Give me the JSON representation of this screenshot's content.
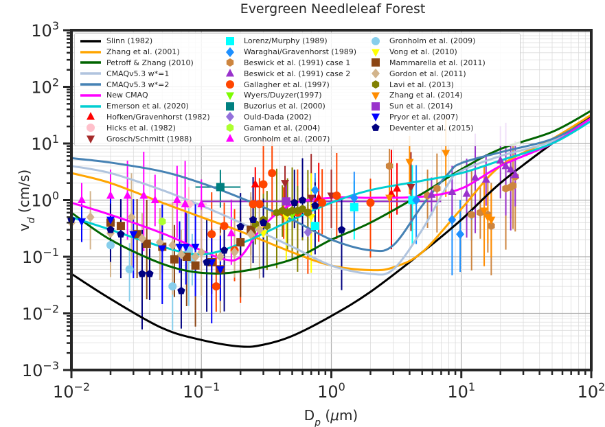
{
  "chart_data": {
    "type": "line",
    "title": "Evergreen Needleleaf Forest",
    "xlabel": "D_p (μm)",
    "ylabel": "v_d (cm/s)",
    "xscale": "log",
    "yscale": "log",
    "xlim": [
      0.01,
      100
    ],
    "ylim": [
      0.001,
      1000
    ],
    "xticks": [
      {
        "value": 0.01,
        "base": "10",
        "exp": "−2"
      },
      {
        "value": 0.1,
        "base": "10",
        "exp": "−1"
      },
      {
        "value": 1,
        "base": "10",
        "exp": "0"
      },
      {
        "value": 10,
        "base": "10",
        "exp": "1"
      },
      {
        "value": 100,
        "base": "10",
        "exp": "2"
      }
    ],
    "yticks": [
      {
        "value": 0.001,
        "base": "10",
        "exp": "−3"
      },
      {
        "value": 0.01,
        "base": "10",
        "exp": "−2"
      },
      {
        "value": 0.1,
        "base": "10",
        "exp": "−1"
      },
      {
        "value": 1,
        "base": "10",
        "exp": "0"
      },
      {
        "value": 10,
        "base": "10",
        "exp": "1"
      },
      {
        "value": 100,
        "base": "10",
        "exp": "2"
      },
      {
        "value": 1000,
        "base": "10",
        "exp": "3"
      }
    ],
    "grid": true,
    "legend_position": "top",
    "lines": [
      {
        "name": "Slinn (1982)",
        "color": "#000000",
        "x": [
          0.01,
          0.02,
          0.05,
          0.1,
          0.2,
          0.3,
          0.5,
          1,
          2,
          5,
          10,
          20,
          50,
          100
        ],
        "y": [
          0.05,
          0.018,
          0.0055,
          0.0034,
          0.0026,
          0.0028,
          0.004,
          0.009,
          0.024,
          0.12,
          0.45,
          2,
          10,
          30
        ]
      },
      {
        "name": "Zhang et al. (2001)",
        "color": "#ffa500",
        "x": [
          0.01,
          0.02,
          0.05,
          0.1,
          0.2,
          0.5,
          1,
          2,
          3,
          5,
          10,
          20,
          50,
          100
        ],
        "y": [
          3,
          2,
          0.9,
          0.5,
          0.28,
          0.12,
          0.07,
          0.058,
          0.065,
          0.12,
          0.7,
          4,
          12,
          32
        ]
      },
      {
        "name": "Petroff & Zhang (2010)",
        "color": "#006400",
        "x": [
          0.01,
          0.02,
          0.05,
          0.1,
          0.2,
          0.5,
          1,
          2,
          5,
          10,
          20,
          50,
          100
        ],
        "y": [
          0.6,
          0.2,
          0.075,
          0.052,
          0.055,
          0.09,
          0.2,
          0.4,
          1.3,
          3.5,
          8,
          16,
          38
        ]
      },
      {
        "name": "CMAQv5.3 w*=1",
        "color": "#b0c4de",
        "x": [
          0.01,
          0.02,
          0.05,
          0.1,
          0.2,
          0.5,
          1,
          2,
          3,
          5,
          8,
          10,
          20,
          50,
          100
        ],
        "y": [
          4,
          3,
          1.5,
          0.8,
          0.4,
          0.15,
          0.07,
          0.05,
          0.06,
          0.3,
          2,
          3.3,
          6,
          11,
          28
        ]
      },
      {
        "name": "CMAQv5.3 w*=2",
        "color": "#4682b4",
        "x": [
          0.01,
          0.02,
          0.05,
          0.1,
          0.2,
          0.5,
          1,
          2,
          3,
          5,
          8,
          10,
          20,
          50,
          100
        ],
        "y": [
          5.5,
          4.6,
          3.2,
          2,
          1.1,
          0.45,
          0.2,
          0.13,
          0.16,
          0.8,
          3,
          4.5,
          7,
          12,
          28
        ]
      },
      {
        "name": "New CMAQ",
        "color": "#ff00ff",
        "x": [
          0.01,
          0.02,
          0.05,
          0.1,
          0.15,
          0.2,
          0.3,
          0.5,
          1,
          2,
          5,
          10,
          20,
          50,
          100
        ],
        "y": [
          0.9,
          0.55,
          0.26,
          0.13,
          0.09,
          0.1,
          0.35,
          0.85,
          1.1,
          1.1,
          1.15,
          1.6,
          4,
          10,
          28
        ]
      },
      {
        "name": "Emerson et al. (2020)",
        "color": "#00ced1",
        "x": [
          0.01,
          0.02,
          0.05,
          0.1,
          0.2,
          0.5,
          1,
          2,
          5,
          10,
          20,
          50,
          100
        ],
        "y": [
          0.5,
          0.3,
          0.15,
          0.11,
          0.17,
          0.45,
          0.9,
          1.5,
          2.2,
          3,
          5,
          10,
          25
        ]
      }
    ],
    "scatter": [
      {
        "name": "Hofken/Gravenhorst (1982)",
        "color": "#ff0000",
        "marker": "triangle-up",
        "points": [
          [
            0.26,
            1.9
          ],
          [
            0.75,
            0.85
          ],
          [
            0.8,
            1.1
          ],
          [
            2.9,
            1.3
          ],
          [
            3.2,
            1.6
          ]
        ]
      },
      {
        "name": "Hicks et al. (1982)",
        "color": "#ffc0cb",
        "marker": "circle",
        "points": [
          [
            0.08,
            0.85
          ]
        ],
        "xerr": [
          [
            0.05,
            0.11
          ]
        ]
      },
      {
        "name": "Grosch/Schmitt (1988)",
        "color": "#a52a2a",
        "marker": "triangle-down",
        "points": [
          [
            0.44,
            2.0
          ],
          [
            1.0,
            1.2
          ],
          [
            4.1,
            1.7
          ],
          [
            0.7,
            1.1
          ]
        ]
      },
      {
        "name": "Lorenz/Murphy (1989)",
        "color": "#00ffff",
        "marker": "square",
        "points": [
          [
            0.75,
            0.35
          ],
          [
            1.5,
            0.75
          ],
          [
            4.2,
            1.0
          ]
        ]
      },
      {
        "name": "Waraghai/Gravenhorst (1989)",
        "color": "#1e90ff",
        "marker": "diamond",
        "points": [
          [
            0.75,
            1.5
          ],
          [
            1.5,
            1.1
          ],
          [
            4.5,
            1.0
          ],
          [
            8.5,
            0.45
          ],
          [
            12,
            0.55
          ],
          [
            9.8,
            0.25
          ]
        ]
      },
      {
        "name": "Beswick et al. (1991) case 1",
        "color": "#cd853f",
        "marker": "hexagon",
        "points": [
          [
            2.8,
            4.0
          ],
          [
            5.5,
            1.2
          ],
          [
            6.5,
            1.6
          ],
          [
            12,
            0.55
          ],
          [
            14,
            0.6
          ],
          [
            16,
            0.55
          ],
          [
            17,
            0.35
          ],
          [
            22,
            1.6
          ],
          [
            24,
            1.7
          ],
          [
            25,
            1.8
          ],
          [
            26,
            2.6
          ]
        ]
      },
      {
        "name": "Beswick et al. (1991) case 2",
        "color": "#9932cc",
        "marker": "triangle-up",
        "points": [
          [
            5.9,
            1.25
          ],
          [
            8.5,
            1.4
          ],
          [
            11,
            1.3
          ],
          [
            12.8,
            2.5
          ],
          [
            15.5,
            2.3
          ],
          [
            20,
            5
          ],
          [
            22,
            4
          ],
          [
            24,
            3.5
          ],
          [
            26,
            2.8
          ]
        ]
      },
      {
        "name": "Gallagher et al. (1997)",
        "color": "#ff4500",
        "marker": "circle",
        "points": [
          [
            0.25,
            0.85
          ],
          [
            0.28,
            0.85
          ],
          [
            0.35,
            3.0
          ],
          [
            0.3,
            1.9
          ],
          [
            0.43,
            0.6
          ],
          [
            0.5,
            0.6
          ],
          [
            0.55,
            0.6
          ],
          [
            0.66,
            0.6
          ],
          [
            0.85,
            0.9
          ],
          [
            1.1,
            1.2
          ],
          [
            2,
            0.9
          ],
          [
            0.13,
            0.03
          ],
          [
            0.12,
            0.25
          ],
          [
            0.15,
            0.35
          ],
          [
            0.2,
            0.18
          ],
          [
            0.18,
            0.13
          ]
        ]
      },
      {
        "name": "Wyers/Duyzer(1997)",
        "color": "#7cfc00",
        "marker": "triangle-down",
        "points": [
          [
            0.5,
            0.55
          ]
        ]
      },
      {
        "name": "Buzorius et al. (2000)",
        "color": "#008080",
        "marker": "square",
        "points": [
          [
            0.14,
            1.7
          ]
        ],
        "xerr": [
          [
            0.09,
            0.2
          ]
        ]
      },
      {
        "name": "Ould-Dada (2002)",
        "color": "#9370db",
        "marker": "diamond",
        "points": [
          [
            0.66,
            0.27
          ]
        ]
      },
      {
        "name": "Gaman et al. (2004)",
        "color": "#adff2f",
        "marker": "hexagon",
        "points": [
          [
            0.05,
            0.42
          ]
        ]
      },
      {
        "name": "Gronholm et al. (2007)",
        "color": "#ff00ff",
        "marker": "triangle-up",
        "points": [
          [
            0.012,
            1.0
          ],
          [
            0.02,
            1.2
          ],
          [
            0.027,
            1.2
          ],
          [
            0.036,
            1.2
          ],
          [
            0.044,
            1.0
          ],
          [
            0.065,
            1.0
          ],
          [
            0.075,
            0.85
          ],
          [
            0.1,
            0.85
          ],
          [
            0.17,
            0.26
          ]
        ]
      },
      {
        "name": "Gronholm et al. (2009)",
        "color": "#87ceeb",
        "marker": "circle",
        "points": [
          [
            0.02,
            0.16
          ],
          [
            0.028,
            0.06
          ],
          [
            0.06,
            0.03
          ],
          [
            0.08,
            0.13
          ],
          [
            0.085,
            0.09
          ]
        ]
      },
      {
        "name": "Vong et al. (2010)",
        "color": "#ffff00",
        "marker": "triangle-down",
        "points": [
          [
            0.28,
            0.3
          ],
          [
            0.3,
            0.26
          ],
          [
            0.45,
            0.5
          ],
          [
            0.7,
            0.5
          ]
        ]
      },
      {
        "name": "Mammarella et al. (2011)",
        "color": "#8b4513",
        "marker": "square",
        "points": [
          [
            0.02,
            0.4
          ],
          [
            0.024,
            0.35
          ],
          [
            0.032,
            0.25
          ],
          [
            0.038,
            0.17
          ],
          [
            0.05,
            0.15
          ],
          [
            0.062,
            0.09
          ],
          [
            0.077,
            0.1
          ],
          [
            0.09,
            0.07
          ],
          [
            0.12,
            0.08
          ],
          [
            0.14,
            0.06
          ],
          [
            0.2,
            0.18
          ],
          [
            0.24,
            0.3
          ]
        ]
      },
      {
        "name": "Gordon et al. (2011)",
        "color": "#d2b48c",
        "marker": "diamond",
        "points": [
          [
            0.01,
            0.4
          ],
          [
            0.014,
            0.5
          ],
          [
            0.02,
            0.26
          ],
          [
            0.029,
            0.5
          ],
          [
            0.035,
            0.21
          ],
          [
            0.048,
            0.18
          ],
          [
            0.06,
            0.16
          ],
          [
            0.07,
            0.11
          ],
          [
            0.09,
            0.1
          ],
          [
            0.1,
            0.12
          ],
          [
            0.14,
            0.1
          ],
          [
            0.18,
            0.12
          ],
          [
            0.24,
            0.25
          ],
          [
            0.28,
            0.3
          ]
        ]
      },
      {
        "name": "Lavi et al. (2013)",
        "color": "#808000",
        "marker": "hexagon",
        "points": [
          [
            0.26,
            0.38
          ],
          [
            0.3,
            0.45
          ],
          [
            0.32,
            0.35
          ],
          [
            0.38,
            0.6
          ],
          [
            0.42,
            0.65
          ],
          [
            0.46,
            0.6
          ],
          [
            0.5,
            0.65
          ],
          [
            0.55,
            0.65
          ],
          [
            0.6,
            0.7
          ],
          [
            0.66,
            0.6
          ]
        ]
      },
      {
        "name": "Zhang et al. (2014)",
        "color": "#ff8c00",
        "marker": "triangle-down",
        "points": [
          [
            2.8,
            1.1
          ],
          [
            4.0,
            4.7
          ],
          [
            7.6,
            6.8
          ],
          [
            15,
            0.65
          ],
          [
            16,
            0.5
          ],
          [
            17,
            0.45
          ]
        ]
      },
      {
        "name": "Sun et al. (2014)",
        "color": "#9932cc",
        "marker": "square",
        "points": [
          [
            0.45,
            0.95
          ]
        ],
        "xerr": [
          [
            0.1,
            7
          ]
        ]
      },
      {
        "name": "Pryor et al. (2007)",
        "color": "#0000ff",
        "marker": "triangle-down",
        "points": [
          [
            0.012,
            0.42
          ],
          [
            0.02,
            0.45
          ],
          [
            0.03,
            0.25
          ],
          [
            0.05,
            0.14
          ],
          [
            0.068,
            0.15
          ],
          [
            0.076,
            0.15
          ],
          [
            0.09,
            0.15
          ],
          [
            0.12,
            0.08
          ],
          [
            0.14,
            0.06
          ]
        ]
      },
      {
        "name": "Deventer et al. (2015)",
        "color": "#000080",
        "marker": "pentagon",
        "points": [
          [
            0.01,
            0.45
          ],
          [
            0.02,
            0.3
          ],
          [
            0.024,
            0.25
          ],
          [
            0.035,
            0.05
          ],
          [
            0.04,
            0.05
          ],
          [
            0.07,
            0.025
          ],
          [
            0.11,
            0.08
          ],
          [
            0.15,
            0.13
          ],
          [
            0.2,
            0.34
          ],
          [
            0.25,
            0.45
          ],
          [
            0.3,
            0.4
          ],
          [
            0.52,
            0.9
          ],
          [
            0.6,
            1.0
          ],
          [
            0.75,
            0.8
          ],
          [
            1.2,
            0.3
          ]
        ]
      }
    ],
    "legend": [
      [
        "Slinn (1982)",
        "Zhang et al. (2001)",
        "Petroff & Zhang (2010)",
        "CMAQv5.3 w*=1",
        "CMAQv5.3 w*=2",
        "New CMAQ",
        "Emerson et al. (2020)",
        "Hofken/Gravenhorst (1982)",
        "Hicks et al. (1982)",
        "Grosch/Schmitt (1988)"
      ],
      [
        "Lorenz/Murphy (1989)",
        "Waraghai/Gravenhorst (1989)",
        "Beswick et al. (1991) case 1",
        "Beswick et al. (1991) case 2",
        "Gallagher et al. (1997)",
        "Wyers/Duyzer(1997)",
        "Buzorius et al. (2000)",
        "Ould-Dada (2002)",
        "Gaman et al. (2004)",
        "Gronholm et al. (2007)"
      ],
      [
        "Gronholm et al. (2009)",
        "Vong et al. (2010)",
        "Mammarella et al. (2011)",
        "Gordon et al. (2011)",
        "Lavi et al. (2013)",
        "Zhang et al. (2014)",
        "Sun et al. (2014)",
        "Pryor et al. (2007)",
        "Deventer et al. (2015)"
      ]
    ]
  }
}
